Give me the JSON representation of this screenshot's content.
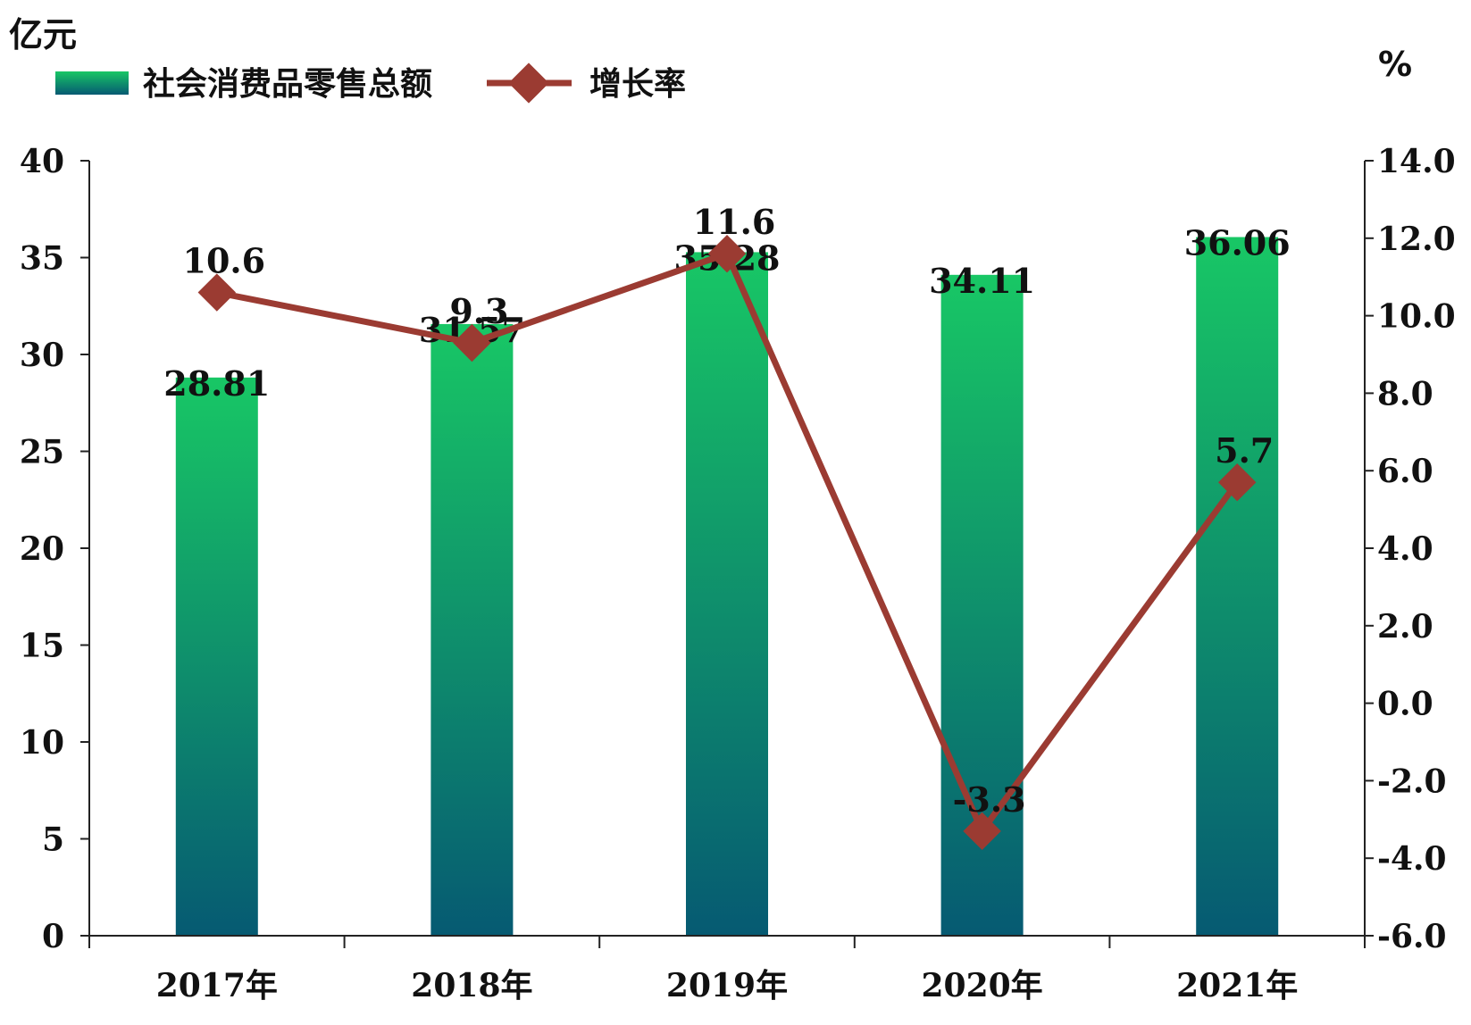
{
  "chart_data": {
    "type": "bar",
    "categories": [
      "2017年",
      "2018年",
      "2019年",
      "2020年",
      "2021年"
    ],
    "series": [
      {
        "name": "社会消费品零售总额",
        "kind": "bar",
        "axis": "left",
        "values": [
          28.81,
          31.57,
          35.28,
          34.11,
          36.06
        ]
      },
      {
        "name": "增长率",
        "kind": "line",
        "axis": "right",
        "values": [
          10.6,
          9.3,
          11.6,
          -3.3,
          5.7
        ]
      }
    ],
    "left_axis": {
      "unit": "亿元",
      "ylim": [
        0,
        40
      ],
      "ticks": [
        "0",
        "5",
        "10",
        "15",
        "20",
        "25",
        "30",
        "35",
        "40"
      ]
    },
    "right_axis": {
      "unit": "%",
      "ylim": [
        -6,
        14
      ],
      "ticks": [
        "-6.0",
        "-4.0",
        "-2.0",
        "0.0",
        "2.0",
        "4.0",
        "6.0",
        "8.0",
        "10.0",
        "12.0",
        "14.0"
      ]
    },
    "bar_labels": [
      "28.81",
      "31.57",
      "35.28",
      "34.11",
      "36.06"
    ],
    "line_labels": [
      "10.6",
      "9.3",
      "11.6",
      "-3.3",
      "5.7"
    ],
    "legend": {
      "position": "top-left"
    },
    "grid": false,
    "colors": {
      "bar_top": "#18c765",
      "bar_bottom": "#065a72",
      "line": "#9b3b32",
      "marker": "#9b3b32"
    }
  }
}
